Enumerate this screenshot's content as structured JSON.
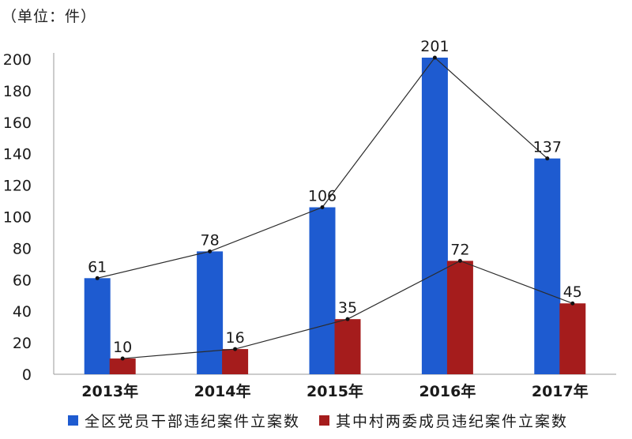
{
  "unit_label": "（单位：件）",
  "colors": {
    "total": "#1e5bd0",
    "village": "#a51c1c",
    "line": "#2b2b2b",
    "axis": "#999999"
  },
  "chart_data": {
    "type": "bar",
    "categories": [
      "2013年",
      "2014年",
      "2015年",
      "2016年",
      "2017年"
    ],
    "series": [
      {
        "name": "全区党员干部违纪案件立案数",
        "values": [
          61,
          78,
          106,
          201,
          137
        ]
      },
      {
        "name": "其中村两委成员违纪案件立案数",
        "values": [
          10,
          16,
          35,
          72,
          45
        ]
      }
    ],
    "data_labels": [
      [
        "61",
        "78",
        "106",
        "201",
        "137"
      ],
      [
        "10",
        "16",
        "35",
        "72",
        "45"
      ]
    ],
    "ylim": [
      0,
      200
    ],
    "yticks": [
      "0",
      "20",
      "40",
      "60",
      "80",
      "100",
      "120",
      "140",
      "160",
      "180",
      "200"
    ],
    "overlay": "line connecting bar tops per series",
    "grid": false,
    "legend_position": "bottom"
  }
}
